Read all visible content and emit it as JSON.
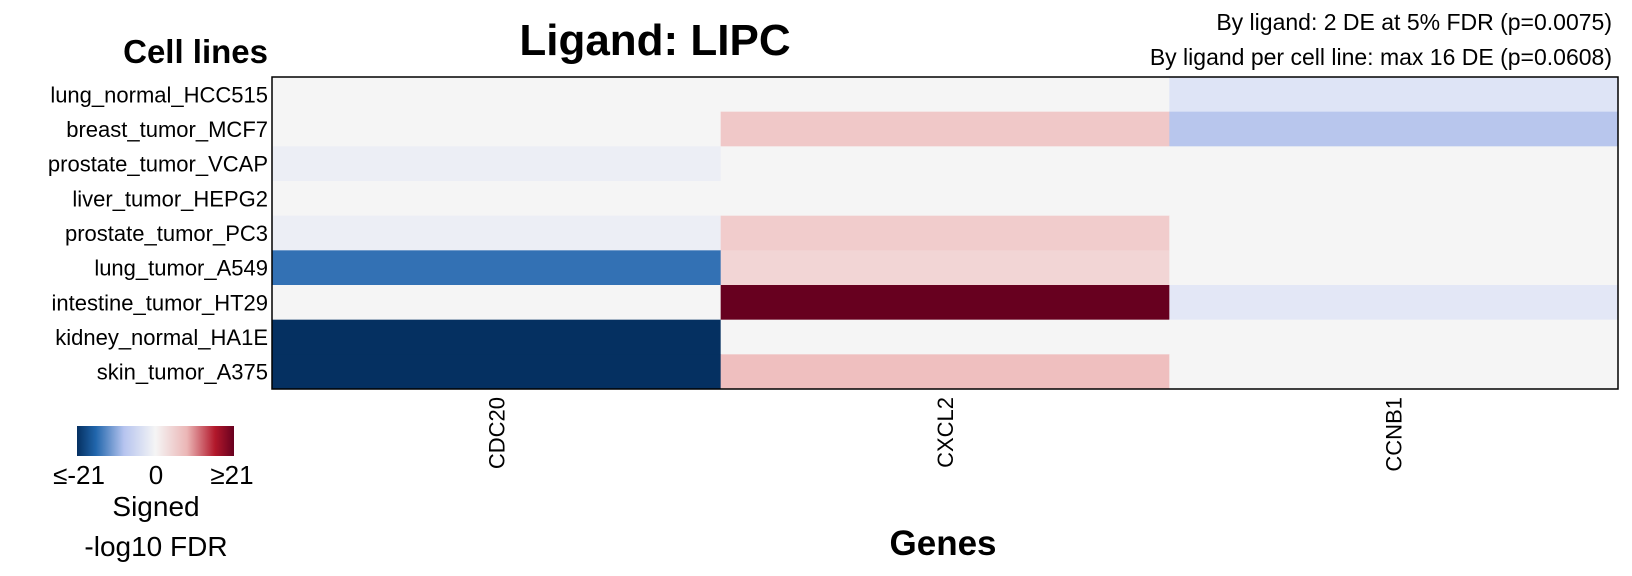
{
  "chart_data": {
    "type": "heatmap",
    "title": "Ligand: LIPC",
    "subtitle_lines": [
      "By ligand: 2 DE at 5% FDR (p=0.0075)",
      "By ligand per cell line: max 16 DE (p=0.0608)"
    ],
    "ylabel": "Cell lines",
    "xlabel": "Genes",
    "rows": [
      "lung_normal_HCC515",
      "breast_tumor_MCF7",
      "prostate_tumor_VCAP",
      "liver_tumor_HEPG2",
      "prostate_tumor_PC3",
      "lung_tumor_A549",
      "intestine_tumor_HT29",
      "kidney_normal_HA1E",
      "skin_tumor_A375"
    ],
    "columns": [
      "CDC20",
      "CXCL2",
      "CCNB1"
    ],
    "values": [
      [
        0,
        0,
        -5
      ],
      [
        0,
        5,
        -9
      ],
      [
        -2,
        0,
        0
      ],
      [
        0,
        0,
        0
      ],
      [
        -2,
        4.5,
        0
      ],
      [
        -15,
        3.5,
        0
      ],
      [
        0,
        21,
        -4
      ],
      [
        -21,
        0,
        0
      ],
      [
        -21,
        6,
        0
      ]
    ],
    "color_scale": {
      "min": -21,
      "max": 21,
      "low_color": "#053061",
      "mid_color": "#f5f5f5",
      "high_color": "#67001f"
    },
    "legend": {
      "tick_labels": [
        "≤-21",
        "0",
        "≥21"
      ],
      "title_lines": [
        "Signed",
        "-log10 FDR"
      ]
    }
  }
}
